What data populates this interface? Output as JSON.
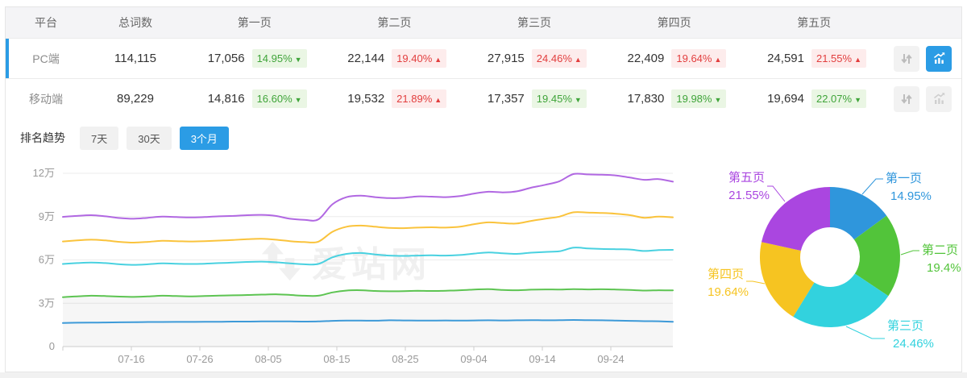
{
  "table": {
    "headers": [
      "平台",
      "总词数",
      "第一页",
      "第二页",
      "第三页",
      "第四页",
      "第五页"
    ],
    "rows": [
      {
        "platform": "PC端",
        "total": "114,115",
        "active": "true",
        "pages": [
          {
            "count": "17,056",
            "pct": "14.95%",
            "dir": "down",
            "arrow": "▼"
          },
          {
            "count": "22,144",
            "pct": "19.40%",
            "dir": "up",
            "arrow": "▲"
          },
          {
            "count": "27,915",
            "pct": "24.46%",
            "dir": "up",
            "arrow": "▲"
          },
          {
            "count": "22,409",
            "pct": "19.64%",
            "dir": "up",
            "arrow": "▲"
          },
          {
            "count": "24,591",
            "pct": "21.55%",
            "dir": "up",
            "arrow": "▲"
          }
        ]
      },
      {
        "platform": "移动端",
        "total": "89,229",
        "active": "false",
        "pages": [
          {
            "count": "14,816",
            "pct": "16.60%",
            "dir": "down",
            "arrow": "▼"
          },
          {
            "count": "19,532",
            "pct": "21.89%",
            "dir": "up",
            "arrow": "▲"
          },
          {
            "count": "17,357",
            "pct": "19.45%",
            "dir": "down",
            "arrow": "▼"
          },
          {
            "count": "17,830",
            "pct": "19.98%",
            "dir": "down",
            "arrow": "▼"
          },
          {
            "count": "19,694",
            "pct": "22.07%",
            "dir": "down",
            "arrow": "▼"
          }
        ]
      }
    ],
    "icons": [
      "sort-arrows-icon",
      "trend-chart-icon"
    ]
  },
  "trend": {
    "label": "排名趋势",
    "tabs": [
      {
        "label": "7天",
        "active": "false"
      },
      {
        "label": "30天",
        "active": "false"
      },
      {
        "label": "3个月",
        "active": "true"
      }
    ]
  },
  "watermark_text": "爱站网",
  "colors": {
    "accent_blue": "#2b9ce5",
    "badge_up_red": "#e23e3e",
    "badge_down_green": "#3fa439"
  },
  "chart_data": [
    {
      "type": "line",
      "title": "排名趋势 (3个月)",
      "xlabel": "",
      "ylabel": "",
      "x_tick_labels": [
        "07-16",
        "07-26",
        "08-05",
        "08-15",
        "08-25",
        "09-04",
        "09-14",
        "09-24"
      ],
      "y_tick_labels": [
        "0",
        "3万",
        "6万",
        "9万",
        "12万"
      ],
      "ylim_wan": [
        0,
        12
      ],
      "grid": "on",
      "legend": "none",
      "note": "values are cumulative keyword counts in 万 (10k); series stack order 第一页→第五页",
      "area_fill_series": "第二页",
      "series": [
        {
          "name": "第一页",
          "color": "#3d9ad8",
          "values": [
            1.63,
            1.65,
            1.66,
            1.67,
            1.68,
            1.69,
            1.7,
            1.7,
            1.71,
            1.71,
            1.72,
            1.72,
            1.73,
            1.73,
            1.74,
            1.74,
            1.74,
            1.73,
            1.74,
            1.78,
            1.8,
            1.8,
            1.79,
            1.82,
            1.81,
            1.8,
            1.8,
            1.81,
            1.8,
            1.81,
            1.82,
            1.81,
            1.82,
            1.83,
            1.82,
            1.83,
            1.84,
            1.83,
            1.82,
            1.8,
            1.78,
            1.76,
            1.75,
            1.72
          ]
        },
        {
          "name": "第二页",
          "color": "#5dc452",
          "values": [
            3.42,
            3.48,
            3.52,
            3.5,
            3.46,
            3.44,
            3.47,
            3.52,
            3.5,
            3.48,
            3.5,
            3.53,
            3.55,
            3.57,
            3.6,
            3.62,
            3.58,
            3.52,
            3.52,
            3.75,
            3.88,
            3.9,
            3.85,
            3.83,
            3.84,
            3.86,
            3.85,
            3.87,
            3.9,
            3.95,
            3.98,
            3.92,
            3.9,
            3.94,
            3.96,
            3.95,
            3.98,
            3.96,
            3.97,
            3.95,
            3.92,
            3.88,
            3.9,
            3.89
          ]
        },
        {
          "name": "第三页",
          "color": "#49d1e0",
          "values": [
            5.72,
            5.78,
            5.82,
            5.78,
            5.7,
            5.66,
            5.7,
            5.76,
            5.74,
            5.72,
            5.74,
            5.78,
            5.82,
            5.86,
            5.88,
            5.84,
            5.76,
            5.7,
            5.72,
            6.18,
            6.42,
            6.48,
            6.38,
            6.3,
            6.28,
            6.3,
            6.32,
            6.3,
            6.34,
            6.44,
            6.52,
            6.46,
            6.42,
            6.5,
            6.55,
            6.6,
            6.85,
            6.8,
            6.76,
            6.74,
            6.72,
            6.62,
            6.68,
            6.7
          ]
        },
        {
          "name": "第四页",
          "color": "#fac33c",
          "values": [
            7.28,
            7.35,
            7.4,
            7.35,
            7.25,
            7.2,
            7.25,
            7.32,
            7.3,
            7.28,
            7.3,
            7.34,
            7.38,
            7.44,
            7.46,
            7.4,
            7.3,
            7.24,
            7.26,
            7.95,
            8.3,
            8.38,
            8.3,
            8.22,
            8.2,
            8.24,
            8.26,
            8.24,
            8.3,
            8.48,
            8.6,
            8.55,
            8.52,
            8.7,
            8.85,
            9.0,
            9.3,
            9.28,
            9.25,
            9.2,
            9.1,
            8.92,
            9.0,
            8.95
          ]
        },
        {
          "name": "第五页",
          "color": "#b168e2",
          "values": [
            8.98,
            9.05,
            9.1,
            9.02,
            8.9,
            8.85,
            8.92,
            9.0,
            8.97,
            8.94,
            8.97,
            9.02,
            9.05,
            9.1,
            9.12,
            9.05,
            8.85,
            8.78,
            8.8,
            9.85,
            10.35,
            10.45,
            10.35,
            10.28,
            10.3,
            10.4,
            10.38,
            10.35,
            10.42,
            10.6,
            10.72,
            10.68,
            10.75,
            11.0,
            11.2,
            11.45,
            11.95,
            11.92,
            11.9,
            11.85,
            11.7,
            11.55,
            11.6,
            11.42
          ]
        }
      ]
    },
    {
      "type": "pie",
      "donut": true,
      "title": "",
      "slices": [
        {
          "label": "第一页",
          "value": 14.95,
          "display": "14.95%",
          "color": "#2f96dc"
        },
        {
          "label": "第二页",
          "value": 19.4,
          "display": "19.4%",
          "color": "#52c43a"
        },
        {
          "label": "第三页",
          "value": 24.46,
          "display": "24.46%",
          "color": "#32d2de"
        },
        {
          "label": "第四页",
          "value": 19.64,
          "display": "19.64%",
          "color": "#f6c421"
        },
        {
          "label": "第五页",
          "value": 21.55,
          "display": "21.55%",
          "color": "#aa46e0"
        }
      ]
    }
  ]
}
